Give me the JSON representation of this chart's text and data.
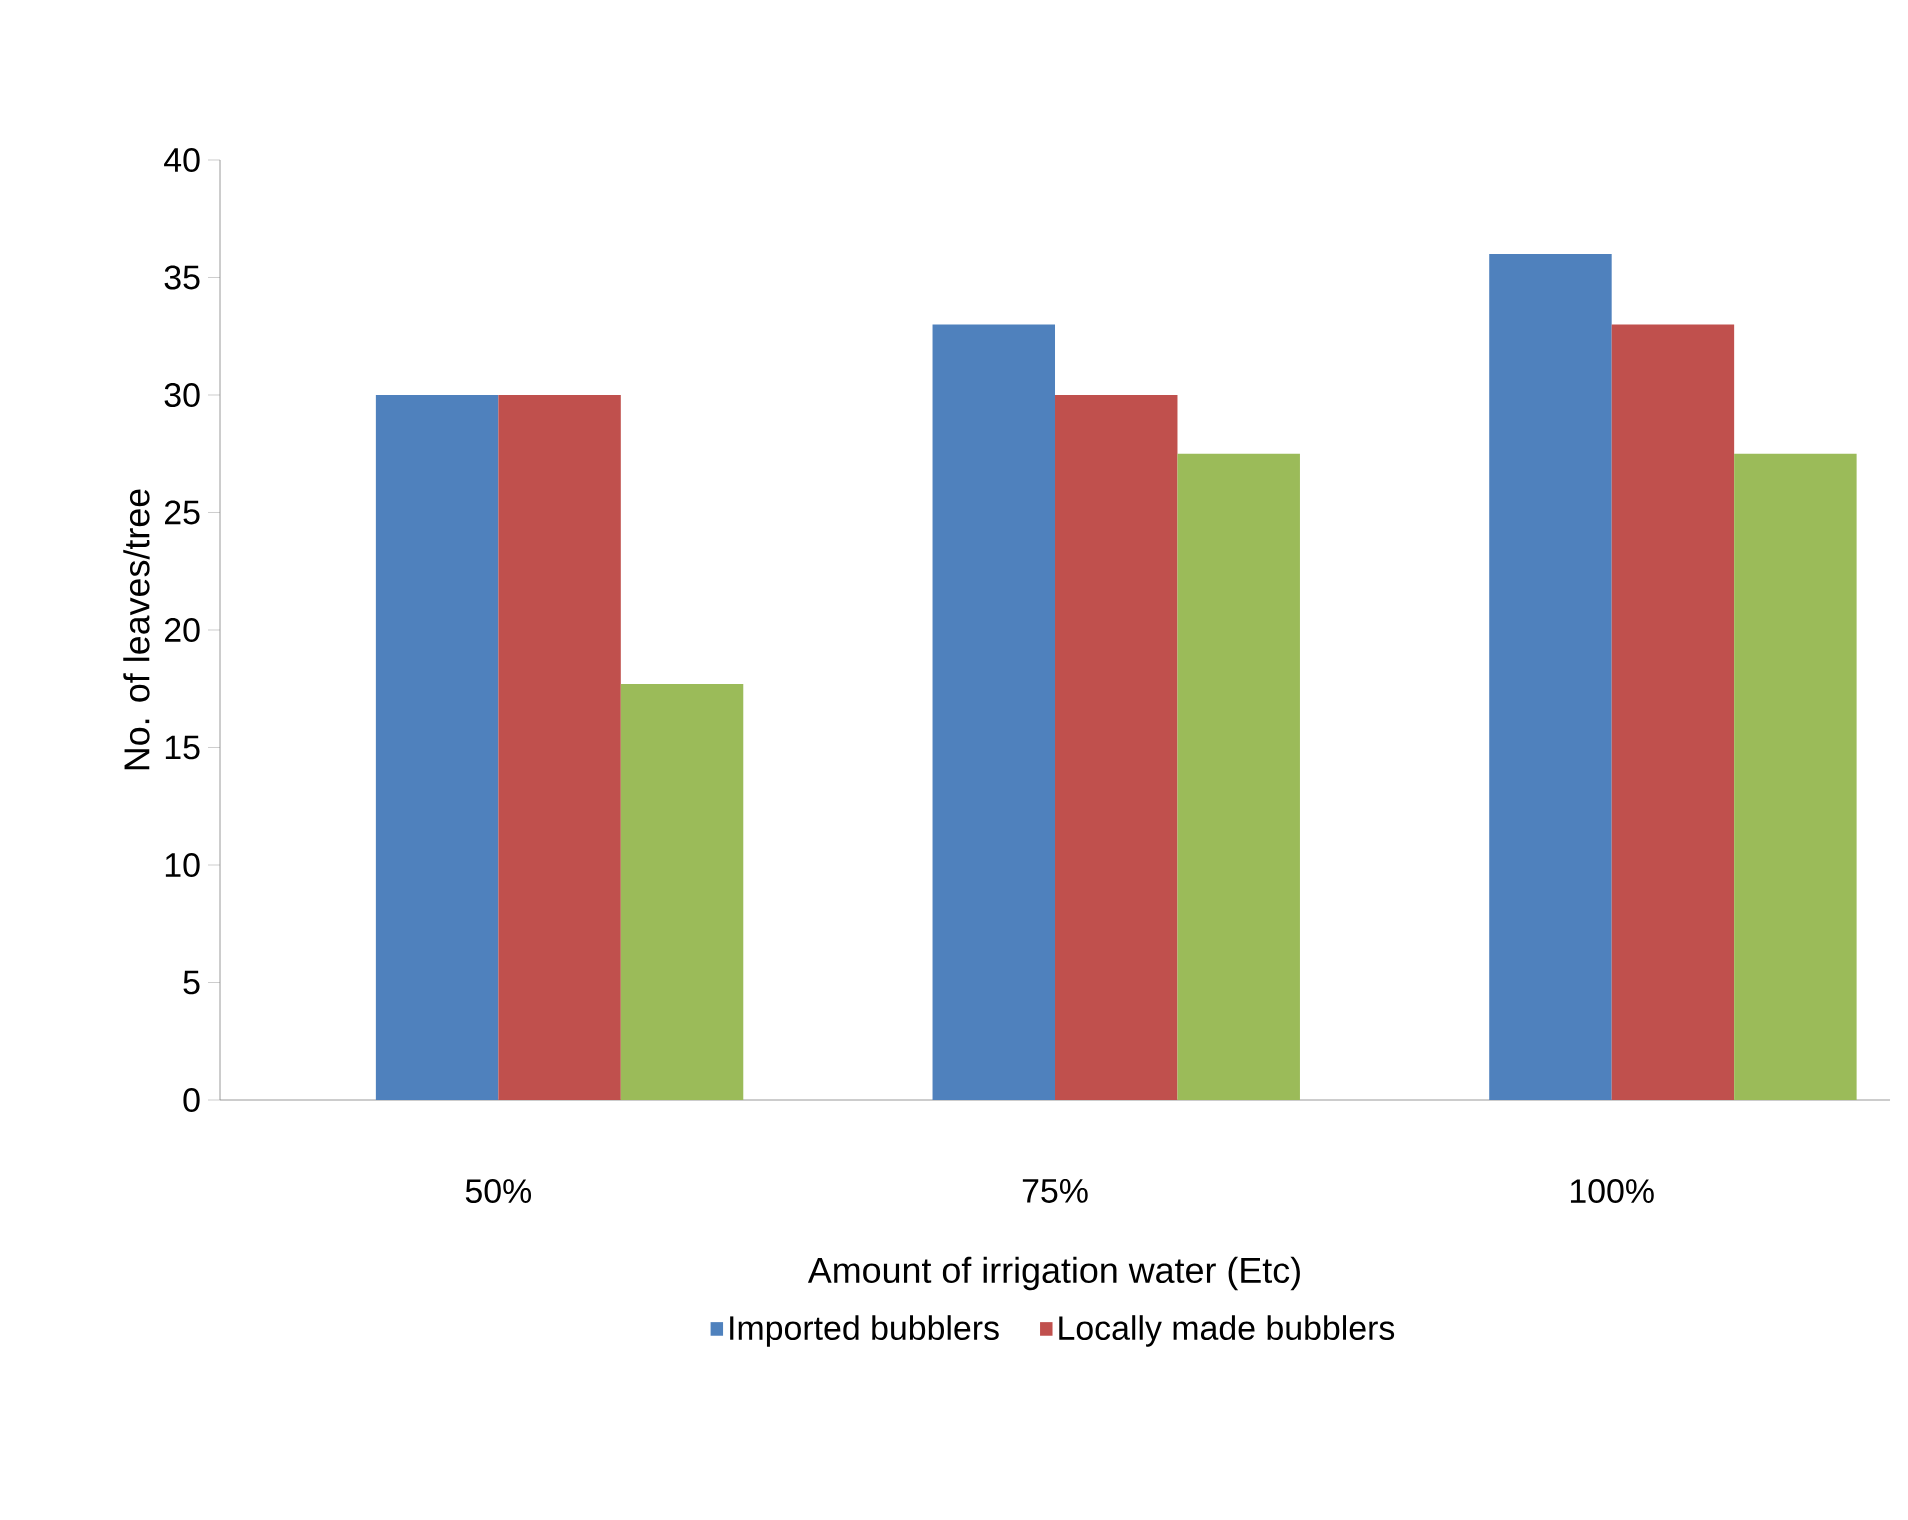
{
  "chart_data": {
    "type": "bar",
    "xlabel": "Amount of irrigation water (Etc)",
    "ylabel": "No. of leaves/tree",
    "categories": [
      "50%",
      "75%",
      "100%"
    ],
    "series": [
      {
        "name": "Imported bubblers",
        "color": "#4f81bd",
        "values": [
          30,
          33,
          36
        ]
      },
      {
        "name": "Locally made bubblers",
        "color": "#c0504d",
        "values": [
          30,
          30,
          33
        ]
      },
      {
        "color": "#9bbb59",
        "values": [
          17.7,
          27.5,
          27.5
        ]
      }
    ],
    "ylim": [
      0,
      40
    ],
    "yticks": [
      0,
      5,
      10,
      15,
      20,
      25,
      30,
      35,
      40
    ],
    "grid": false,
    "legend": "bottom"
  }
}
